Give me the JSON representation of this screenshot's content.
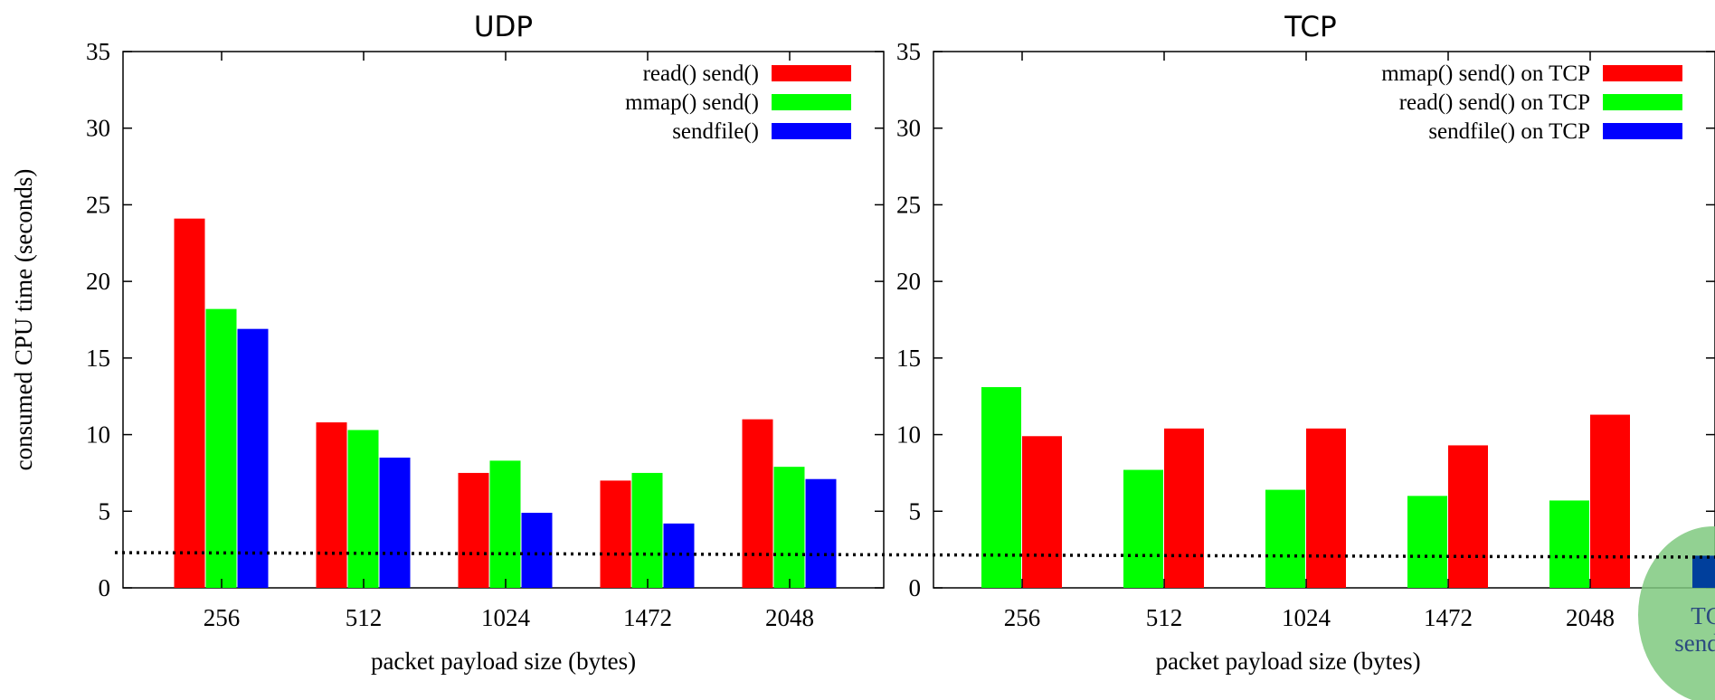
{
  "chart_data": [
    {
      "type": "bar",
      "title": "UDP",
      "xlabel": "packet payload size (bytes)",
      "ylabel": "consumed CPU time (seconds)",
      "ylim": [
        0,
        35
      ],
      "yticks": [
        0,
        5,
        10,
        15,
        20,
        25,
        30,
        35
      ],
      "categories": [
        "256",
        "512",
        "1024",
        "1472",
        "2048"
      ],
      "legend_position": "top-right",
      "series": [
        {
          "name": "read() send()",
          "color": "#ff0000",
          "values": [
            24.1,
            10.8,
            7.5,
            7.0,
            11.0
          ]
        },
        {
          "name": "mmap() send()",
          "color": "#00ff00",
          "values": [
            18.2,
            10.3,
            8.3,
            7.5,
            7.9
          ]
        },
        {
          "name": "sendfile()",
          "color": "#0000ff",
          "values": [
            16.9,
            8.5,
            4.9,
            4.2,
            7.1
          ]
        }
      ],
      "reference_line": 2.3
    },
    {
      "type": "bar",
      "title": "TCP",
      "xlabel": "packet payload size (bytes)",
      "ylim": [
        0,
        35
      ],
      "yticks": [
        0,
        5,
        10,
        15,
        20,
        25,
        30,
        35
      ],
      "categories": [
        "256",
        "512",
        "1024",
        "1472",
        "2048"
      ],
      "legend_position": "top-right",
      "legend": [
        {
          "name": "mmap() send() on TCP",
          "color": "#ff0000"
        },
        {
          "name": "read() send() on TCP",
          "color": "#00ff00"
        },
        {
          "name": "sendfile() on TCP",
          "color": "#0000ff"
        }
      ],
      "series": [
        {
          "name": "read() send() on TCP",
          "color": "#00ff00",
          "values": [
            13.1,
            7.7,
            6.4,
            6.0,
            5.7
          ]
        },
        {
          "name": "mmap() send() on TCP",
          "color": "#ff0000",
          "values": [
            9.9,
            10.4,
            10.4,
            9.3,
            11.3
          ]
        }
      ],
      "extra_bar": {
        "label": "TCP\nsendfile",
        "value": 2.1,
        "color": "#003f9c",
        "highlight_color": "#7fc97f"
      },
      "reference_line": 2.3
    }
  ]
}
